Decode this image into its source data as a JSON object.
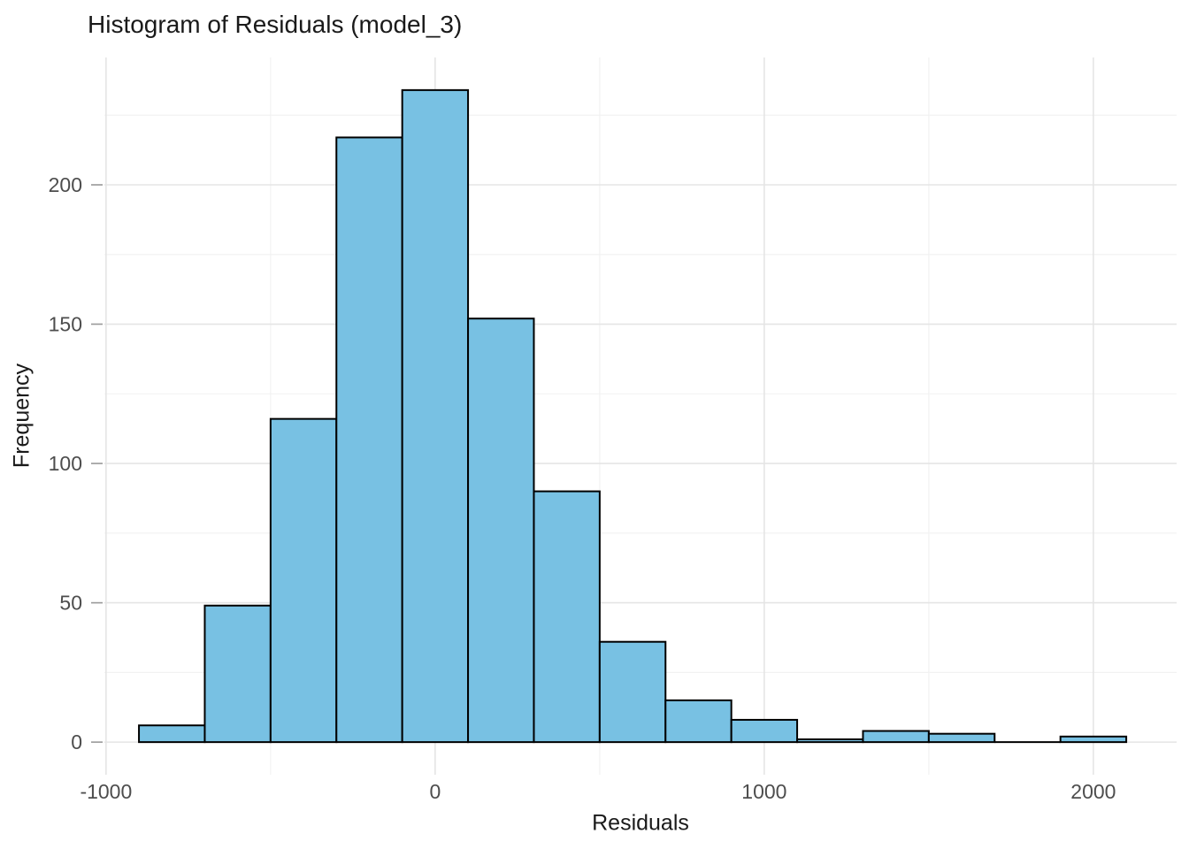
{
  "chart_data": {
    "type": "bar",
    "subtype": "histogram",
    "title": "Histogram of Residuals (model_3)",
    "xlabel": "Residuals",
    "ylabel": "Frequency",
    "bin_width": 200,
    "bin_edges": [
      -900,
      -700,
      -500,
      -300,
      -100,
      100,
      300,
      500,
      700,
      900,
      1100,
      1300,
      1500,
      1700,
      1900,
      2100
    ],
    "counts": [
      6,
      49,
      116,
      217,
      234,
      152,
      90,
      36,
      15,
      8,
      1,
      4,
      3,
      0,
      2
    ],
    "x_ticks": [
      -1000,
      0,
      1000,
      2000
    ],
    "x_minor_ticks": [
      -500,
      500,
      1500
    ],
    "y_ticks": [
      0,
      50,
      100,
      150,
      200
    ],
    "y_minor_ticks": [
      25,
      75,
      125,
      175,
      225
    ],
    "xlim": [
      -1005,
      2253
    ],
    "ylim": [
      -11.7,
      245.7
    ],
    "grid": "on",
    "legend": "none",
    "colors": {
      "bar_fill": "#78C1E3",
      "bar_border": "#000000",
      "grid_major": "#E5E5E5",
      "grid_minor": "#F2F2F2",
      "axis_tick": "#999999",
      "tick_label": "#4D4D4D",
      "text": "#1A1A1A",
      "background": "#FFFFFF"
    }
  }
}
